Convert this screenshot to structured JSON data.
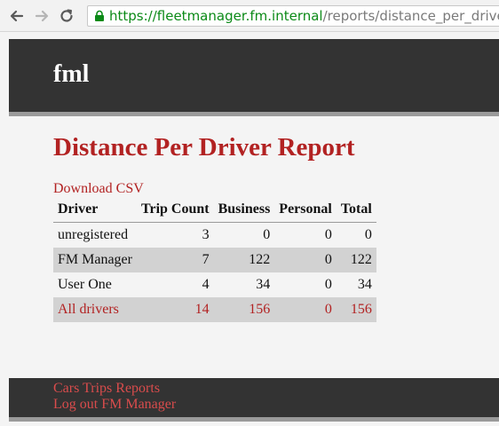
{
  "browser": {
    "url_scheme": "https://",
    "url_host": "fleetmanager.fm.internal",
    "url_path": "/reports/distance_per_driver",
    "back_icon": "arrow-left-icon",
    "forward_icon": "arrow-right-icon",
    "reload_icon": "reload-icon",
    "lock_icon": "lock-icon",
    "secure_color": "#0b8a17"
  },
  "header": {
    "brand": "fml"
  },
  "main": {
    "title": "Distance Per Driver Report",
    "download_label": "Download CSV",
    "table": {
      "columns": [
        "Driver",
        "Trip Count",
        "Business",
        "Personal",
        "Total"
      ],
      "rows": [
        {
          "driver": "unregistered",
          "trip_count": "3",
          "business": "0",
          "personal": "0",
          "total": "0"
        },
        {
          "driver": "FM Manager",
          "trip_count": "7",
          "business": "122",
          "personal": "0",
          "total": "122"
        },
        {
          "driver": "User One",
          "trip_count": "4",
          "business": "34",
          "personal": "0",
          "total": "34"
        }
      ],
      "totals": {
        "driver": "All drivers",
        "trip_count": "14",
        "business": "156",
        "personal": "0",
        "total": "156"
      }
    }
  },
  "footer": {
    "nav": [
      "Cars",
      "Trips",
      "Reports"
    ],
    "logout_label": "Log out",
    "user_name": "FM Manager"
  },
  "colors": {
    "accent": "#b22222",
    "header_bg": "#333333",
    "row_shade": "#d2d2d2"
  }
}
